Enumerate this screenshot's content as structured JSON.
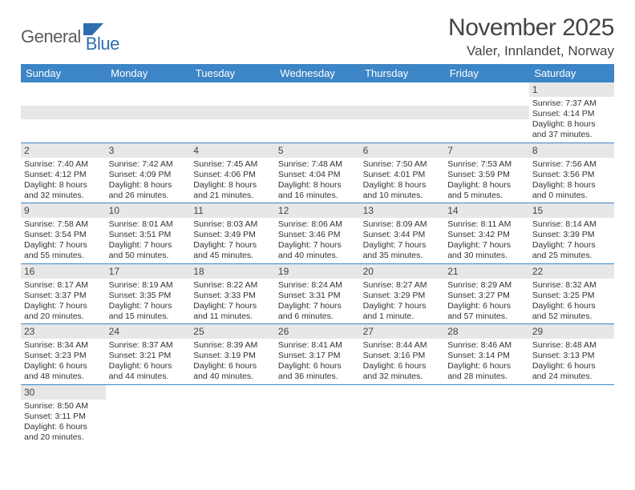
{
  "logo": {
    "part1": "General",
    "part2": "Blue",
    "color1": "#5c5c5c",
    "color2": "#2f6fb0",
    "shape_color": "#2f6fb0"
  },
  "title": "November 2025",
  "location": "Valer, Innlandet, Norway",
  "colors": {
    "header_bg": "#3c85c6",
    "header_fg": "#ffffff",
    "daynum_bg": "#e7e7e7",
    "grid_line": "#3c85c6",
    "text": "#333333"
  },
  "dow": [
    "Sunday",
    "Monday",
    "Tuesday",
    "Wednesday",
    "Thursday",
    "Friday",
    "Saturday"
  ],
  "weeks": [
    [
      null,
      null,
      null,
      null,
      null,
      null,
      {
        "n": "1",
        "sunrise": "7:37 AM",
        "sunset": "4:14 PM",
        "daylight": "8 hours and 37 minutes."
      }
    ],
    [
      {
        "n": "2",
        "sunrise": "7:40 AM",
        "sunset": "4:12 PM",
        "daylight": "8 hours and 32 minutes."
      },
      {
        "n": "3",
        "sunrise": "7:42 AM",
        "sunset": "4:09 PM",
        "daylight": "8 hours and 26 minutes."
      },
      {
        "n": "4",
        "sunrise": "7:45 AM",
        "sunset": "4:06 PM",
        "daylight": "8 hours and 21 minutes."
      },
      {
        "n": "5",
        "sunrise": "7:48 AM",
        "sunset": "4:04 PM",
        "daylight": "8 hours and 16 minutes."
      },
      {
        "n": "6",
        "sunrise": "7:50 AM",
        "sunset": "4:01 PM",
        "daylight": "8 hours and 10 minutes."
      },
      {
        "n": "7",
        "sunrise": "7:53 AM",
        "sunset": "3:59 PM",
        "daylight": "8 hours and 5 minutes."
      },
      {
        "n": "8",
        "sunrise": "7:56 AM",
        "sunset": "3:56 PM",
        "daylight": "8 hours and 0 minutes."
      }
    ],
    [
      {
        "n": "9",
        "sunrise": "7:58 AM",
        "sunset": "3:54 PM",
        "daylight": "7 hours and 55 minutes."
      },
      {
        "n": "10",
        "sunrise": "8:01 AM",
        "sunset": "3:51 PM",
        "daylight": "7 hours and 50 minutes."
      },
      {
        "n": "11",
        "sunrise": "8:03 AM",
        "sunset": "3:49 PM",
        "daylight": "7 hours and 45 minutes."
      },
      {
        "n": "12",
        "sunrise": "8:06 AM",
        "sunset": "3:46 PM",
        "daylight": "7 hours and 40 minutes."
      },
      {
        "n": "13",
        "sunrise": "8:09 AM",
        "sunset": "3:44 PM",
        "daylight": "7 hours and 35 minutes."
      },
      {
        "n": "14",
        "sunrise": "8:11 AM",
        "sunset": "3:42 PM",
        "daylight": "7 hours and 30 minutes."
      },
      {
        "n": "15",
        "sunrise": "8:14 AM",
        "sunset": "3:39 PM",
        "daylight": "7 hours and 25 minutes."
      }
    ],
    [
      {
        "n": "16",
        "sunrise": "8:17 AM",
        "sunset": "3:37 PM",
        "daylight": "7 hours and 20 minutes."
      },
      {
        "n": "17",
        "sunrise": "8:19 AM",
        "sunset": "3:35 PM",
        "daylight": "7 hours and 15 minutes."
      },
      {
        "n": "18",
        "sunrise": "8:22 AM",
        "sunset": "3:33 PM",
        "daylight": "7 hours and 11 minutes."
      },
      {
        "n": "19",
        "sunrise": "8:24 AM",
        "sunset": "3:31 PM",
        "daylight": "7 hours and 6 minutes."
      },
      {
        "n": "20",
        "sunrise": "8:27 AM",
        "sunset": "3:29 PM",
        "daylight": "7 hours and 1 minute."
      },
      {
        "n": "21",
        "sunrise": "8:29 AM",
        "sunset": "3:27 PM",
        "daylight": "6 hours and 57 minutes."
      },
      {
        "n": "22",
        "sunrise": "8:32 AM",
        "sunset": "3:25 PM",
        "daylight": "6 hours and 52 minutes."
      }
    ],
    [
      {
        "n": "23",
        "sunrise": "8:34 AM",
        "sunset": "3:23 PM",
        "daylight": "6 hours and 48 minutes."
      },
      {
        "n": "24",
        "sunrise": "8:37 AM",
        "sunset": "3:21 PM",
        "daylight": "6 hours and 44 minutes."
      },
      {
        "n": "25",
        "sunrise": "8:39 AM",
        "sunset": "3:19 PM",
        "daylight": "6 hours and 40 minutes."
      },
      {
        "n": "26",
        "sunrise": "8:41 AM",
        "sunset": "3:17 PM",
        "daylight": "6 hours and 36 minutes."
      },
      {
        "n": "27",
        "sunrise": "8:44 AM",
        "sunset": "3:16 PM",
        "daylight": "6 hours and 32 minutes."
      },
      {
        "n": "28",
        "sunrise": "8:46 AM",
        "sunset": "3:14 PM",
        "daylight": "6 hours and 28 minutes."
      },
      {
        "n": "29",
        "sunrise": "8:48 AM",
        "sunset": "3:13 PM",
        "daylight": "6 hours and 24 minutes."
      }
    ],
    [
      {
        "n": "30",
        "sunrise": "8:50 AM",
        "sunset": "3:11 PM",
        "daylight": "6 hours and 20 minutes."
      },
      null,
      null,
      null,
      null,
      null,
      null
    ]
  ],
  "labels": {
    "sunrise": "Sunrise:",
    "sunset": "Sunset:",
    "daylight": "Daylight:"
  }
}
